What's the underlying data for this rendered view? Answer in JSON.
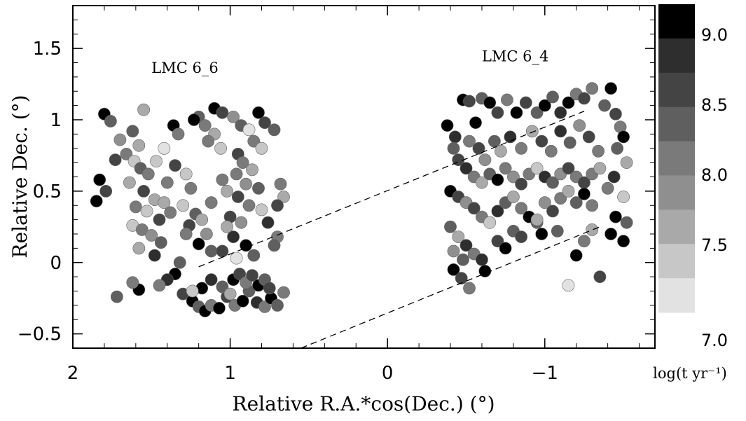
{
  "chart_data": {
    "type": "scatter",
    "xlabel": "Relative R.A.*cos(Dec.) (°)",
    "ylabel": "Relative Dec. (°)",
    "xlim": [
      2.0,
      -1.7
    ],
    "ylim": [
      -0.6,
      1.8
    ],
    "x_ticks": [
      {
        "value": 2,
        "label": "2"
      },
      {
        "value": 1,
        "label": "1"
      },
      {
        "value": 0,
        "label": "0"
      },
      {
        "value": -1,
        "label": "−1"
      }
    ],
    "y_ticks": [
      {
        "value": -0.5,
        "label": "−0.5"
      },
      {
        "value": 0,
        "label": "0"
      },
      {
        "value": 0.5,
        "label": "0.5"
      },
      {
        "value": 1,
        "label": "1"
      },
      {
        "value": 1.5,
        "label": "1.5"
      }
    ],
    "annotations": [
      {
        "text": "LMC 6_6",
        "x": 1.5,
        "y": 1.33
      },
      {
        "text": "LMC 6_4",
        "x": -0.6,
        "y": 1.41
      }
    ],
    "dashed_lines": [
      [
        [
          1.2,
          -0.03
        ],
        [
          -1.25,
          1.06
        ]
      ],
      [
        [
          0.55,
          -0.6
        ],
        [
          -1.35,
          0.25
        ]
      ]
    ],
    "colorbar": {
      "title": "log(t yr⁻¹)",
      "range": [
        7.0,
        9.2
      ],
      "levels": [
        {
          "value": 9.1,
          "color": "#000000"
        },
        {
          "value": 8.85,
          "color": "#2e2e2e"
        },
        {
          "value": 8.6,
          "color": "#444444"
        },
        {
          "value": 8.35,
          "color": "#5f5f5f"
        },
        {
          "value": 8.1,
          "color": "#7a7a7a"
        },
        {
          "value": 7.85,
          "color": "#8f8f8f"
        },
        {
          "value": 7.6,
          "color": "#a9a9a9"
        },
        {
          "value": 7.35,
          "color": "#c7c7c7"
        },
        {
          "value": 7.1,
          "color": "#e2e2e2"
        }
      ],
      "tick_labels": [
        {
          "value": 9.0,
          "label": "9.0"
        },
        {
          "value": 8.5,
          "label": "8.5"
        },
        {
          "value": 8.0,
          "label": "8.0"
        },
        {
          "value": 7.5,
          "label": "7.5"
        },
        {
          "value": 7.0,
          "label": "7.0"
        }
      ]
    },
    "points": [
      [
        1.8,
        1.04,
        9.1
      ],
      [
        1.76,
        0.99,
        8.3
      ],
      [
        1.83,
        0.58,
        9.1
      ],
      [
        1.79,
        0.5,
        8.6
      ],
      [
        1.85,
        0.43,
        9.1
      ],
      [
        1.62,
        0.92,
        8.3
      ],
      [
        1.7,
        0.86,
        7.9
      ],
      [
        1.58,
        0.82,
        7.5
      ],
      [
        1.66,
        0.76,
        8.1
      ],
      [
        1.73,
        0.72,
        8.6
      ],
      [
        1.61,
        0.71,
        7.3
      ],
      [
        1.57,
        0.66,
        8.4
      ],
      [
        1.52,
        0.62,
        8.1
      ],
      [
        1.64,
        0.56,
        7.5
      ],
      [
        1.55,
        0.5,
        8.6
      ],
      [
        1.48,
        0.44,
        7.6
      ],
      [
        1.6,
        0.39,
        8.2
      ],
      [
        1.53,
        0.36,
        7.3
      ],
      [
        1.45,
        0.3,
        8.5
      ],
      [
        1.62,
        0.26,
        7.4
      ],
      [
        1.56,
        0.23,
        8.0
      ],
      [
        1.5,
        0.19,
        7.8
      ],
      [
        1.44,
        0.14,
        8.4
      ],
      [
        1.58,
        0.1,
        7.5
      ],
      [
        1.48,
        0.05,
        8.9
      ],
      [
        1.42,
        0.42,
        7.7
      ],
      [
        1.38,
        0.35,
        8.2
      ],
      [
        1.4,
        0.56,
        8.0
      ],
      [
        1.47,
        0.71,
        7.4
      ],
      [
        1.55,
        1.07,
        7.7
      ],
      [
        1.36,
        0.96,
        9.1
      ],
      [
        1.33,
        0.9,
        8.1
      ],
      [
        1.42,
        0.8,
        7.2
      ],
      [
        1.35,
        0.68,
        8.5
      ],
      [
        1.28,
        0.62,
        7.4
      ],
      [
        1.25,
        0.52,
        8.1
      ],
      [
        1.3,
        0.4,
        7.3
      ],
      [
        1.22,
        0.34,
        8.4
      ],
      [
        1.18,
        0.3,
        7.6
      ],
      [
        1.26,
        0.26,
        8.7
      ],
      [
        1.15,
        0.2,
        7.9
      ],
      [
        1.2,
        0.13,
        9.1
      ],
      [
        1.12,
        0.08,
        8.3
      ],
      [
        1.2,
        1.02,
        8.4
      ],
      [
        1.23,
        1.0,
        9.1
      ],
      [
        1.16,
        0.96,
        8.0
      ],
      [
        1.1,
        0.9,
        7.5
      ],
      [
        1.14,
        0.85,
        8.2
      ],
      [
        1.06,
        0.8,
        7.4
      ],
      [
        1.1,
        1.08,
        9.1
      ],
      [
        1.05,
        1.05,
        8.6
      ],
      [
        0.98,
        1.02,
        7.8
      ],
      [
        0.93,
        0.96,
        8.3
      ],
      [
        0.88,
        0.93,
        7.2
      ],
      [
        0.82,
        1.05,
        9.1
      ],
      [
        0.78,
        0.98,
        8.7
      ],
      [
        0.72,
        0.93,
        8.4
      ],
      [
        0.85,
        0.85,
        8.0
      ],
      [
        0.8,
        0.8,
        7.3
      ],
      [
        0.95,
        0.76,
        8.7
      ],
      [
        0.92,
        0.7,
        8.0
      ],
      [
        0.86,
        0.65,
        7.5
      ],
      [
        0.96,
        0.62,
        8.2
      ],
      [
        0.9,
        0.55,
        7.8
      ],
      [
        0.82,
        0.52,
        8.4
      ],
      [
        1.02,
        0.5,
        7.6
      ],
      [
        0.95,
        0.46,
        8.6
      ],
      [
        0.88,
        0.4,
        8.2
      ],
      [
        0.8,
        0.37,
        7.4
      ],
      [
        1.0,
        0.32,
        8.5
      ],
      [
        0.93,
        0.28,
        7.8
      ],
      [
        0.76,
        0.28,
        8.9
      ],
      [
        0.7,
        0.18,
        8.1
      ],
      [
        0.72,
        0.12,
        8.4
      ],
      [
        0.66,
        0.46,
        7.6
      ],
      [
        0.7,
        0.4,
        8.7
      ],
      [
        0.68,
        0.55,
        8.2
      ],
      [
        0.98,
        0.18,
        8.8
      ],
      [
        0.9,
        0.12,
        9.1
      ],
      [
        0.85,
        0.05,
        8.4
      ],
      [
        0.96,
        0.03,
        7.1
      ],
      [
        1.05,
        0.08,
        8.6
      ],
      [
        1.02,
        0.25,
        7.5
      ],
      [
        1.12,
        0.42,
        8.0
      ],
      [
        1.05,
        0.58,
        8.1
      ],
      [
        1.28,
        0.2,
        8.0
      ],
      [
        1.32,
        0.0,
        8.4
      ],
      [
        1.35,
        -0.08,
        9.1
      ],
      [
        1.4,
        -0.12,
        8.9
      ],
      [
        1.45,
        -0.16,
        8.1
      ],
      [
        1.58,
        -0.19,
        9.1
      ],
      [
        1.72,
        -0.24,
        8.4
      ],
      [
        1.62,
        -0.14,
        8.2
      ],
      [
        1.3,
        -0.22,
        8.6
      ],
      [
        1.24,
        -0.27,
        9.1
      ],
      [
        1.2,
        -0.31,
        8.3
      ],
      [
        1.16,
        -0.34,
        9.1
      ],
      [
        1.12,
        -0.3,
        8.0
      ],
      [
        1.07,
        -0.32,
        9.1
      ],
      [
        1.02,
        -0.24,
        8.6
      ],
      [
        0.97,
        -0.3,
        8.1
      ],
      [
        0.92,
        -0.27,
        9.0
      ],
      [
        0.88,
        -0.2,
        8.3
      ],
      [
        0.83,
        -0.28,
        8.8
      ],
      [
        0.78,
        -0.31,
        8.1
      ],
      [
        0.74,
        -0.25,
        9.0
      ],
      [
        0.7,
        -0.3,
        8.4
      ],
      [
        0.66,
        -0.21,
        8.2
      ],
      [
        1.18,
        -0.18,
        9.1
      ],
      [
        1.12,
        -0.12,
        8.9
      ],
      [
        1.05,
        -0.17,
        8.4
      ],
      [
        0.98,
        -0.12,
        9.1
      ],
      [
        0.94,
        -0.08,
        8.6
      ],
      [
        0.9,
        -0.14,
        8.0
      ],
      [
        0.86,
        -0.09,
        8.7
      ],
      [
        0.82,
        -0.16,
        9.1
      ],
      [
        0.78,
        -0.12,
        8.4
      ],
      [
        0.75,
        -0.18,
        8.6
      ],
      [
        1.24,
        -0.2,
        7.4
      ],
      [
        1.0,
        -0.22,
        7.6
      ],
      [
        -0.38,
        0.96,
        9.1
      ],
      [
        -0.43,
        0.88,
        8.9
      ],
      [
        -0.48,
        1.14,
        9.1
      ],
      [
        -0.52,
        1.13,
        8.5
      ],
      [
        -0.56,
        0.98,
        9.1
      ],
      [
        -0.6,
        1.15,
        8.3
      ],
      [
        -0.65,
        1.12,
        9.1
      ],
      [
        -0.7,
        1.05,
        8.7
      ],
      [
        -0.76,
        1.14,
        8.2
      ],
      [
        -0.82,
        1.05,
        9.0
      ],
      [
        -0.88,
        1.12,
        8.6
      ],
      [
        -0.95,
        1.05,
        8.3
      ],
      [
        -1.0,
        1.1,
        9.1
      ],
      [
        -1.05,
        1.16,
        8.4
      ],
      [
        -1.1,
        1.05,
        8.8
      ],
      [
        -1.15,
        1.12,
        9.1
      ],
      [
        -1.2,
        1.18,
        8.2
      ],
      [
        -1.25,
        1.15,
        8.6
      ],
      [
        -1.3,
        1.22,
        8.1
      ],
      [
        -1.38,
        1.1,
        8.3
      ],
      [
        -1.42,
        1.22,
        9.1
      ],
      [
        -1.45,
        1.04,
        8.5
      ],
      [
        -1.48,
        0.95,
        8.0
      ],
      [
        -1.5,
        0.88,
        9.1
      ],
      [
        -1.46,
        0.8,
        8.3
      ],
      [
        -1.52,
        0.7,
        7.6
      ],
      [
        -1.44,
        0.6,
        8.9
      ],
      [
        -1.4,
        0.52,
        8.2
      ],
      [
        -1.5,
        0.46,
        7.4
      ],
      [
        -1.45,
        0.32,
        9.1
      ],
      [
        -1.52,
        0.28,
        8.4
      ],
      [
        -1.42,
        0.2,
        9.0
      ],
      [
        -1.5,
        0.15,
        9.1
      ],
      [
        -1.3,
        0.23,
        7.5
      ],
      [
        -1.25,
        0.15,
        8.0
      ],
      [
        -1.2,
        0.05,
        9.1
      ],
      [
        -1.15,
        -0.16,
        7.1
      ],
      [
        -1.35,
        -0.1,
        8.6
      ],
      [
        -0.42,
        0.8,
        8.3
      ],
      [
        -0.45,
        0.72,
        8.6
      ],
      [
        -0.5,
        0.66,
        8.9
      ],
      [
        -0.55,
        0.6,
        8.0
      ],
      [
        -0.6,
        0.56,
        7.5
      ],
      [
        -0.65,
        0.62,
        8.4
      ],
      [
        -0.7,
        0.58,
        9.1
      ],
      [
        -0.75,
        0.66,
        8.2
      ],
      [
        -0.8,
        0.6,
        7.8
      ],
      [
        -0.85,
        0.55,
        8.6
      ],
      [
        -0.9,
        0.62,
        8.1
      ],
      [
        -0.95,
        0.66,
        7.4
      ],
      [
        -1.0,
        0.6,
        8.8
      ],
      [
        -1.05,
        0.56,
        8.3
      ],
      [
        -1.1,
        0.62,
        7.8
      ],
      [
        -1.15,
        0.66,
        8.5
      ],
      [
        -1.2,
        0.6,
        8.0
      ],
      [
        -1.25,
        0.56,
        8.7
      ],
      [
        -1.3,
        0.62,
        8.1
      ],
      [
        -1.35,
        0.66,
        7.6
      ],
      [
        -0.4,
        0.5,
        9.1
      ],
      [
        -0.45,
        0.46,
        8.5
      ],
      [
        -0.5,
        0.42,
        7.9
      ],
      [
        -0.55,
        0.38,
        8.6
      ],
      [
        -0.6,
        0.32,
        8.1
      ],
      [
        -0.65,
        0.28,
        7.3
      ],
      [
        -0.7,
        0.36,
        8.8
      ],
      [
        -0.75,
        0.42,
        8.3
      ],
      [
        -0.8,
        0.46,
        7.7
      ],
      [
        -0.85,
        0.38,
        8.2
      ],
      [
        -0.9,
        0.32,
        9.1
      ],
      [
        -0.95,
        0.28,
        8.4
      ],
      [
        -1.0,
        0.42,
        7.9
      ],
      [
        -1.05,
        0.36,
        8.6
      ],
      [
        -1.1,
        0.45,
        8.0
      ],
      [
        -1.15,
        0.5,
        7.5
      ],
      [
        -1.2,
        0.42,
        8.4
      ],
      [
        -1.25,
        0.48,
        9.1
      ],
      [
        -1.3,
        0.4,
        8.2
      ],
      [
        -0.4,
        0.25,
        8.3
      ],
      [
        -0.45,
        0.18,
        7.6
      ],
      [
        -0.5,
        0.12,
        8.8
      ],
      [
        -0.55,
        0.06,
        8.2
      ],
      [
        -0.6,
        0.02,
        8.9
      ],
      [
        -0.42,
        0.08,
        7.8
      ],
      [
        -0.48,
        0.02,
        8.4
      ],
      [
        -0.42,
        -0.05,
        9.1
      ],
      [
        -0.47,
        -0.11,
        8.5
      ],
      [
        -0.52,
        -0.18,
        8.2
      ],
      [
        -0.62,
        -0.06,
        9.1
      ],
      [
        -0.7,
        0.15,
        8.5
      ],
      [
        -0.75,
        0.1,
        9.0
      ],
      [
        -0.8,
        0.22,
        8.3
      ],
      [
        -0.85,
        0.18,
        8.7
      ],
      [
        -0.95,
        0.3,
        7.5
      ],
      [
        -0.98,
        0.2,
        9.1
      ],
      [
        -1.08,
        0.22,
        8.4
      ],
      [
        -0.52,
        0.85,
        8.1
      ],
      [
        -0.58,
        0.8,
        8.5
      ],
      [
        -0.62,
        0.72,
        7.8
      ],
      [
        -0.68,
        0.85,
        8.3
      ],
      [
        -0.72,
        0.78,
        7.6
      ],
      [
        -0.78,
        0.88,
        8.8
      ],
      [
        -0.85,
        0.8,
        8.2
      ],
      [
        -0.92,
        0.92,
        7.7
      ],
      [
        -0.98,
        0.85,
        8.6
      ],
      [
        -1.04,
        0.78,
        8.0
      ],
      [
        -1.1,
        0.92,
        8.9
      ],
      [
        -1.16,
        0.84,
        8.3
      ],
      [
        -1.22,
        0.96,
        7.9
      ],
      [
        -1.28,
        0.88,
        8.7
      ],
      [
        -1.34,
        0.78,
        8.1
      ]
    ]
  }
}
